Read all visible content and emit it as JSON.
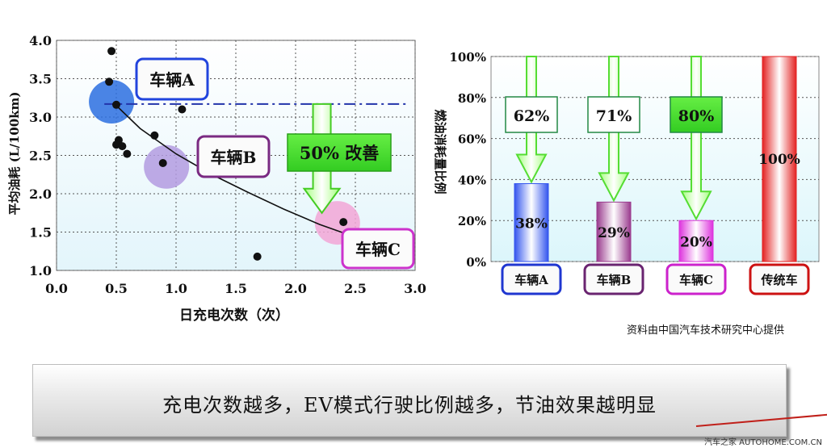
{
  "chart_data": [
    {
      "type": "scatter",
      "xlabel": "日充电次数（次）",
      "ylabel": "平均油耗 (L/100km)",
      "xlim": [
        0.0,
        3.0
      ],
      "ylim": [
        1.0,
        4.0
      ],
      "x_ticks": [
        "0.0",
        "0.5",
        "1.0",
        "1.5",
        "2.0",
        "2.5",
        "3.0"
      ],
      "y_ticks": [
        "1.0",
        "1.5",
        "2.0",
        "2.5",
        "3.0",
        "3.5",
        "4.0"
      ],
      "grid": true,
      "points": [
        {
          "x": 0.46,
          "y": 3.86
        },
        {
          "x": 0.44,
          "y": 3.46
        },
        {
          "x": 0.5,
          "y": 3.16
        },
        {
          "x": 1.05,
          "y": 3.1
        },
        {
          "x": 0.82,
          "y": 2.76
        },
        {
          "x": 0.52,
          "y": 2.7
        },
        {
          "x": 0.5,
          "y": 2.64
        },
        {
          "x": 0.55,
          "y": 2.62
        },
        {
          "x": 0.59,
          "y": 2.52
        },
        {
          "x": 0.89,
          "y": 2.4
        },
        {
          "x": 2.4,
          "y": 1.63
        },
        {
          "x": 1.68,
          "y": 1.18
        }
      ],
      "trend_curve": [
        {
          "x": 0.5,
          "y": 3.15
        },
        {
          "x": 0.7,
          "y": 2.85
        },
        {
          "x": 1.0,
          "y": 2.52
        },
        {
          "x": 1.3,
          "y": 2.25
        },
        {
          "x": 1.6,
          "y": 2.02
        },
        {
          "x": 1.9,
          "y": 1.8
        },
        {
          "x": 2.2,
          "y": 1.6
        },
        {
          "x": 2.4,
          "y": 1.49
        }
      ],
      "reference_line_y": 3.17,
      "vehicle_groups": [
        {
          "label": "车辆A",
          "x": 0.46,
          "y": 3.2,
          "color": "#2b6fe0",
          "label_border": "#2244dd"
        },
        {
          "label": "车辆B",
          "x": 0.92,
          "y": 2.35,
          "color": "#b39be0",
          "label_border": "#7a2a82"
        },
        {
          "label": "车辆C",
          "x": 2.35,
          "y": 1.62,
          "color": "#f2a6d6",
          "label_border": "#cc33cc"
        }
      ],
      "annotation": "50% 改善"
    },
    {
      "type": "bar",
      "ylabel": "燃油消耗量比例",
      "ylim": [
        0,
        100
      ],
      "y_ticks": [
        "0%",
        "20%",
        "40%",
        "60%",
        "80%",
        "100%"
      ],
      "categories": [
        "车辆A",
        "车辆B",
        "车辆C",
        "传统车"
      ],
      "values": [
        38,
        29,
        20,
        100
      ],
      "value_labels": [
        "38%",
        "29%",
        "20%",
        "100%"
      ],
      "improvement_labels": [
        "62%",
        "71%",
        "80%"
      ],
      "bar_colors": [
        "#3355ee",
        "#9a3a8e",
        "#dd33dd",
        "#e32222"
      ],
      "category_border_colors": [
        "#1f36d0",
        "#6a2470",
        "#cc22cc",
        "#cc1111"
      ]
    }
  ],
  "banner_text": "充电次数越多，EV模式行驶比例越多，节油效果越明显",
  "source_text": "资料由中国汽车技术研究中心提供",
  "footer_text": "汽车之家  AUTOHOME.COM.CN"
}
